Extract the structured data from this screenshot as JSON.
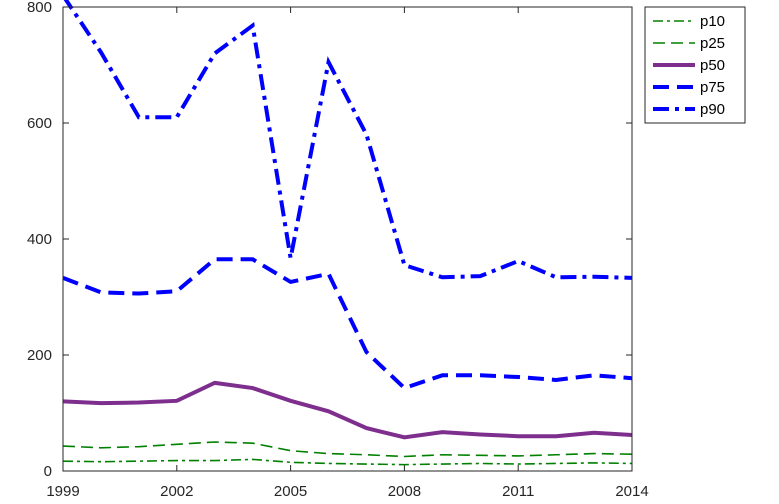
{
  "chart_data": {
    "type": "line",
    "title": "",
    "xlabel": "",
    "ylabel": "",
    "xlim": [
      1999,
      2014
    ],
    "ylim": [
      0,
      800
    ],
    "x_ticks": [
      1999,
      2002,
      2005,
      2008,
      2011,
      2014
    ],
    "y_ticks": [
      0,
      200,
      400,
      600,
      800
    ],
    "x": [
      1999,
      2000,
      2001,
      2002,
      2003,
      2004,
      2005,
      2006,
      2007,
      2008,
      2009,
      2010,
      2011,
      2012,
      2013,
      2014
    ],
    "grid": false,
    "legend_position": "outside top-right",
    "series": [
      {
        "name": "p10",
        "color": "#008000",
        "style": "dashdot",
        "values": [
          17,
          16,
          17,
          18,
          18,
          20,
          15,
          13,
          12,
          11,
          12,
          13,
          12,
          13,
          14,
          13
        ]
      },
      {
        "name": "p25",
        "color": "#008000",
        "style": "dashed",
        "values": [
          43,
          40,
          42,
          46,
          50,
          48,
          35,
          30,
          28,
          25,
          28,
          27,
          26,
          28,
          30,
          29
        ]
      },
      {
        "name": "p50",
        "color": "#7E2F8E",
        "style": "solid",
        "values": [
          120,
          117,
          118,
          121,
          152,
          143,
          121,
          103,
          74,
          58,
          67,
          63,
          60,
          60,
          66,
          62
        ]
      },
      {
        "name": "p75",
        "color": "#0000FF",
        "style": "dashed",
        "values": [
          333,
          308,
          306,
          310,
          365,
          365,
          326,
          340,
          205,
          143,
          165,
          165,
          162,
          157,
          165,
          160
        ]
      },
      {
        "name": "p90",
        "color": "#0000FF",
        "style": "dashdot",
        "values": [
          820,
          722,
          610,
          610,
          720,
          768,
          367,
          705,
          580,
          355,
          334,
          336,
          362,
          334,
          335,
          333
        ]
      }
    ]
  }
}
